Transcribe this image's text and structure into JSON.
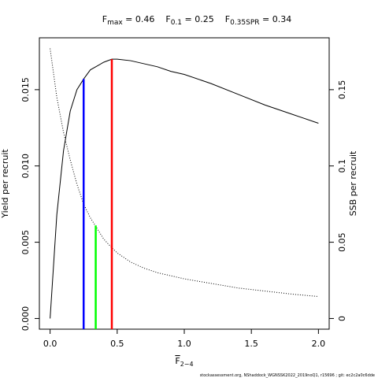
{
  "chart_data": {
    "type": "line",
    "title": [
      {
        "symbol": "F",
        "sub": "max",
        "value": 0.46
      },
      {
        "symbol": "F",
        "sub": "0.1",
        "value": 0.25
      },
      {
        "symbol": "F",
        "sub": "0.35SPR",
        "value": 0.34
      }
    ],
    "xlabel": {
      "symbol": "F",
      "sub": "2−4"
    },
    "ylabel": "Yield per recruit",
    "y2label": "SSB per recruit",
    "footer": "stockassessment.org, NShaddock_WGNSSK2022_2019noQ1, r15696 ; git: ec2c2a0c6dde",
    "x": [
      0,
      0.05,
      0.1,
      0.15,
      0.2,
      0.25,
      0.3,
      0.4,
      0.46,
      0.5,
      0.6,
      0.7,
      0.8,
      0.9,
      1.0,
      1.2,
      1.4,
      1.6,
      1.8,
      2.0
    ],
    "series": [
      {
        "name": "Yield per recruit",
        "color": "#000000",
        "dash": false,
        "axis": "y",
        "values": [
          0,
          0.0068,
          0.011,
          0.0136,
          0.015,
          0.0157,
          0.0163,
          0.0168,
          0.017,
          0.017,
          0.0169,
          0.0167,
          0.0165,
          0.0162,
          0.016,
          0.0154,
          0.0147,
          0.014,
          0.0134,
          0.0128
        ]
      },
      {
        "name": "SSB per recruit",
        "color": "#000000",
        "dash": true,
        "axis": "y2",
        "values": [
          0.177,
          0.145,
          0.122,
          0.104,
          0.088,
          0.075,
          0.066,
          0.052,
          0.0464,
          0.043,
          0.037,
          0.033,
          0.03,
          0.028,
          0.026,
          0.023,
          0.02,
          0.018,
          0.016,
          0.0144
        ]
      }
    ],
    "reference_lines": [
      {
        "value": 0.46,
        "top": 0.017,
        "axis": "y",
        "color": "#ff0000"
      },
      {
        "value": 0.25,
        "top": 0.0157,
        "axis": "y",
        "color": "#0000ff"
      },
      {
        "value": 0.34,
        "top": 0.061,
        "axis": "y2",
        "color": "#00ff00"
      }
    ],
    "xlim": [
      -0.08,
      2.08
    ],
    "xticks": [
      {
        "value": 0,
        "label": "0.0"
      },
      0.5,
      {
        "value": 1,
        "label": "1.0"
      },
      1.5,
      {
        "value": 2,
        "label": "2.0"
      }
    ],
    "ylim": [
      -0.0007,
      0.0184
    ],
    "yticks": [
      {
        "value": 0,
        "label": "0.000"
      },
      0.005,
      {
        "value": 0.01,
        "label": "0.010"
      },
      0.015
    ],
    "y2lim": [
      -0.007,
      0.184
    ],
    "y2ticks": [
      0,
      0.05,
      0.1,
      0.15
    ]
  }
}
